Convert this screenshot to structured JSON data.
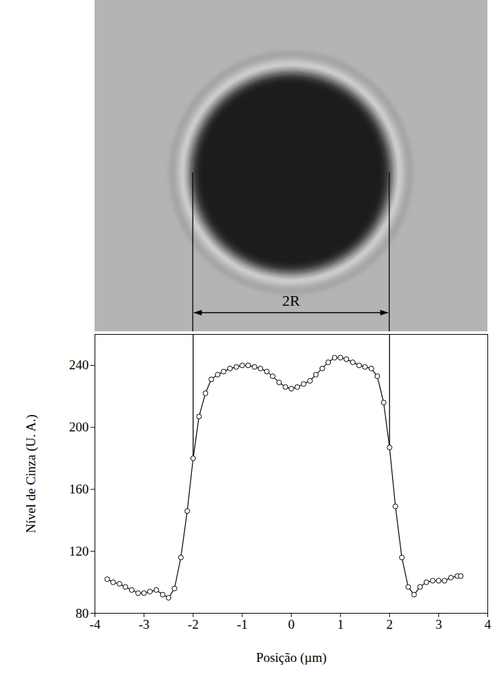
{
  "chart_data": {
    "type": "line",
    "x_label": "Posição (µm)",
    "y_label": "Nível de Cinza (U. A.)",
    "x": [
      -3.75,
      -3.63,
      -3.5,
      -3.38,
      -3.25,
      -3.12,
      -3.0,
      -2.88,
      -2.75,
      -2.62,
      -2.5,
      -2.38,
      -2.25,
      -2.12,
      -2.0,
      -1.88,
      -1.75,
      -1.63,
      -1.5,
      -1.38,
      -1.25,
      -1.12,
      -1.0,
      -0.88,
      -0.75,
      -0.63,
      -0.5,
      -0.38,
      -0.25,
      -0.12,
      0.0,
      0.12,
      0.25,
      0.38,
      0.5,
      0.63,
      0.75,
      0.88,
      1.0,
      1.12,
      1.25,
      1.38,
      1.5,
      1.63,
      1.75,
      1.88,
      2.0,
      2.12,
      2.25,
      2.38,
      2.5,
      2.62,
      2.75,
      2.88,
      3.0,
      3.12,
      3.25,
      3.38,
      3.45
    ],
    "values": [
      102,
      100,
      99,
      97,
      95,
      93,
      93,
      94,
      95,
      92,
      90,
      96,
      116,
      146,
      180,
      207,
      222,
      231,
      234,
      236,
      238,
      239,
      240,
      240,
      239,
      238,
      236,
      233,
      229,
      226,
      225,
      226,
      228,
      230,
      234,
      238,
      242,
      245,
      245,
      244,
      242,
      240,
      239,
      238,
      233,
      216,
      187,
      149,
      116,
      97,
      92,
      97,
      100,
      101,
      101,
      101,
      103,
      104,
      104
    ],
    "color": "#000000",
    "marker": "circle",
    "line_style": "solid",
    "xlim": [
      -4,
      4
    ],
    "xticks": [
      -4,
      -3,
      -2,
      -1,
      0,
      1,
      2,
      3,
      4
    ],
    "ylim": [
      80,
      260
    ],
    "yticks": [
      80,
      120,
      160,
      200,
      240
    ],
    "grid": false,
    "annotations": [
      {
        "text": "2R",
        "x_from": -2,
        "x_to": 2
      }
    ]
  }
}
